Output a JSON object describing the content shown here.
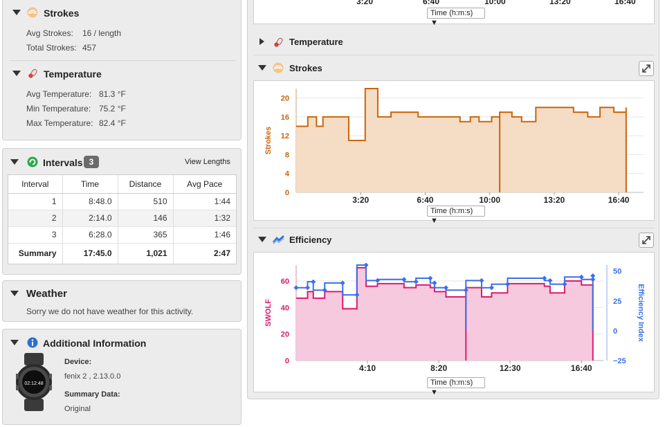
{
  "left": {
    "strokes": {
      "title": "Strokes",
      "avg_label": "Avg Strokes:",
      "avg_value": "16 / length",
      "total_label": "Total Strokes:",
      "total_value": "457"
    },
    "temperature": {
      "title": "Temperature",
      "avg_label": "Avg Temperature:",
      "avg_value": "81.3 °F",
      "min_label": "Min Temperature:",
      "min_value": "75.2 °F",
      "max_label": "Max Temperature:",
      "max_value": "82.4 °F"
    },
    "intervals": {
      "title": "Intervals",
      "count": "3",
      "view_lengths": "View Lengths",
      "columns": [
        "Interval",
        "Time",
        "Distance",
        "Avg Pace"
      ],
      "rows": [
        {
          "interval": "1",
          "time": "8:48.0",
          "distance": "510",
          "pace": "1:44"
        },
        {
          "interval": "2",
          "time": "2:14.0",
          "distance": "146",
          "pace": "1:32"
        },
        {
          "interval": "3",
          "time": "6:28.0",
          "distance": "365",
          "pace": "1:46"
        }
      ],
      "summary": {
        "interval": "Summary",
        "time": "17:45.0",
        "distance": "1,021",
        "pace": "2:47"
      }
    },
    "weather": {
      "title": "Weather",
      "message": "Sorry we do not have weather for this activity."
    },
    "additional": {
      "title": "Additional Information",
      "device_label": "Device:",
      "device_value": "fenix 2 , 2.13.0.0",
      "summary_label": "Summary Data:",
      "summary_value": "Original",
      "watch_time": "02:12:48"
    }
  },
  "right": {
    "top_partial": {
      "ticks": [
        "3:20",
        "6:40",
        "10:00",
        "13:20",
        "16:40"
      ],
      "selector": "Time (h:m:s)"
    },
    "temperature_header": "Temperature",
    "strokes_header": "Strokes",
    "efficiency_header": "Efficiency",
    "strokes_selector": "Time (h:m:s)",
    "efficiency_selector": "Time (h:m:s)"
  },
  "colors": {
    "strokes": "#c8650a",
    "strokes_fill": "#f5dcc4",
    "swolf": "#d81b6e",
    "swolf_fill": "#f7c9df",
    "efficiency": "#3a6fe8"
  },
  "chart_data": [
    {
      "type": "area",
      "title": "",
      "xlabel": "Time (h:m:s)",
      "ylabel": "Strokes",
      "xlim": [
        0,
        1077
      ],
      "ylim": [
        0,
        22
      ],
      "x_tick_labels": [
        "3:20",
        "6:40",
        "10:00",
        "13:20",
        "16:40"
      ],
      "x_ticks": [
        200,
        400,
        600,
        800,
        1000
      ],
      "y_ticks": [
        0,
        4,
        8,
        12,
        16,
        20
      ],
      "step": true,
      "series": [
        {
          "name": "Strokes",
          "points": [
            [
              0,
              14
            ],
            [
              36,
              14
            ],
            [
              36,
              16
            ],
            [
              63,
              16
            ],
            [
              63,
              14
            ],
            [
              83,
              14
            ],
            [
              83,
              16
            ],
            [
              163,
              16
            ],
            [
              163,
              11
            ],
            [
              214,
              11
            ],
            [
              214,
              22
            ],
            [
              253,
              22
            ],
            [
              253,
              16
            ],
            [
              294,
              16
            ],
            [
              294,
              17
            ],
            [
              378,
              17
            ],
            [
              378,
              16
            ],
            [
              508,
              16
            ],
            [
              508,
              15
            ],
            [
              540,
              15
            ],
            [
              540,
              16
            ],
            [
              567,
              16
            ],
            [
              567,
              15
            ],
            [
              606,
              15
            ],
            [
              606,
              16
            ],
            [
              631,
              16
            ],
            [
              631,
              0
            ],
            [
              631,
              17
            ],
            [
              669,
              17
            ],
            [
              669,
              16
            ],
            [
              699,
              16
            ],
            [
              699,
              15
            ],
            [
              743,
              15
            ],
            [
              743,
              18
            ],
            [
              860,
              18
            ],
            [
              860,
              17
            ],
            [
              904,
              17
            ],
            [
              904,
              16
            ],
            [
              942,
              16
            ],
            [
              942,
              18
            ],
            [
              985,
              18
            ],
            [
              985,
              17
            ],
            [
              1023,
              17
            ],
            [
              1023,
              0
            ],
            [
              1023,
              18
            ]
          ]
        }
      ]
    },
    {
      "type": "line",
      "title": "",
      "xlabel": "Time (h:m:s)",
      "ylabel": "SWOLF",
      "y2label": "Efficiency Index",
      "xlim": [
        0,
        1077
      ],
      "ylim": [
        0,
        72
      ],
      "y2lim": [
        -25,
        55
      ],
      "x_tick_labels": [
        "4:10",
        "8:20",
        "12:30",
        "16:40"
      ],
      "x_ticks": [
        250,
        500,
        750,
        1000
      ],
      "y_ticks": [
        0,
        20,
        40,
        60
      ],
      "y2_ticks": [
        -25,
        0,
        25,
        50
      ],
      "series": [
        {
          "name": "SWOLF",
          "axis": "left",
          "step": true,
          "points": [
            [
              0,
              47
            ],
            [
              40,
              47
            ],
            [
              40,
              52
            ],
            [
              60,
              52
            ],
            [
              60,
              47
            ],
            [
              100,
              47
            ],
            [
              100,
              52
            ],
            [
              163,
              52
            ],
            [
              163,
              39
            ],
            [
              213,
              39
            ],
            [
              213,
              70
            ],
            [
              245,
              70
            ],
            [
              245,
              56
            ],
            [
              285,
              56
            ],
            [
              285,
              58
            ],
            [
              378,
              58
            ],
            [
              378,
              55
            ],
            [
              420,
              55
            ],
            [
              420,
              57
            ],
            [
              470,
              57
            ],
            [
              470,
              55
            ],
            [
              485,
              55
            ],
            [
              485,
              52
            ],
            [
              525,
              52
            ],
            [
              525,
              48
            ],
            [
              595,
              48
            ],
            [
              595,
              0
            ],
            [
              595,
              55
            ],
            [
              650,
              55
            ],
            [
              650,
              48
            ],
            [
              685,
              48
            ],
            [
              685,
              51
            ],
            [
              741,
              51
            ],
            [
              741,
              58
            ],
            [
              870,
              58
            ],
            [
              870,
              56
            ],
            [
              890,
              56
            ],
            [
              890,
              51
            ],
            [
              941,
              51
            ],
            [
              941,
              60
            ],
            [
              1000,
              60
            ],
            [
              1000,
              57
            ],
            [
              1040,
              57
            ],
            [
              1040,
              0
            ]
          ]
        },
        {
          "name": "Efficiency Index",
          "axis": "right",
          "step": true,
          "points": [
            [
              0,
              36
            ],
            [
              40,
              36
            ],
            [
              40,
              41
            ],
            [
              60,
              41
            ],
            [
              60,
              34
            ],
            [
              100,
              34
            ],
            [
              100,
              40
            ],
            [
              163,
              40
            ],
            [
              163,
              30
            ],
            [
              213,
              30
            ],
            [
              213,
              55
            ],
            [
              245,
              55
            ],
            [
              245,
              42
            ],
            [
              285,
              42
            ],
            [
              285,
              43
            ],
            [
              378,
              43
            ],
            [
              378,
              41
            ],
            [
              420,
              41
            ],
            [
              420,
              44
            ],
            [
              470,
              44
            ],
            [
              470,
              40
            ],
            [
              485,
              40
            ],
            [
              485,
              36
            ],
            [
              525,
              36
            ],
            [
              525,
              34
            ],
            [
              595,
              34
            ],
            [
              595,
              1
            ],
            [
              595,
              42
            ],
            [
              650,
              42
            ],
            [
              650,
              36
            ],
            [
              685,
              36
            ],
            [
              685,
              39
            ],
            [
              741,
              39
            ],
            [
              741,
              44
            ],
            [
              870,
              44
            ],
            [
              870,
              42
            ],
            [
              890,
              42
            ],
            [
              890,
              39
            ],
            [
              941,
              39
            ],
            [
              941,
              45
            ],
            [
              1000,
              45
            ],
            [
              1000,
              43
            ],
            [
              1040,
              43
            ],
            [
              1040,
              0
            ],
            [
              1040,
              46
            ]
          ]
        }
      ]
    }
  ]
}
